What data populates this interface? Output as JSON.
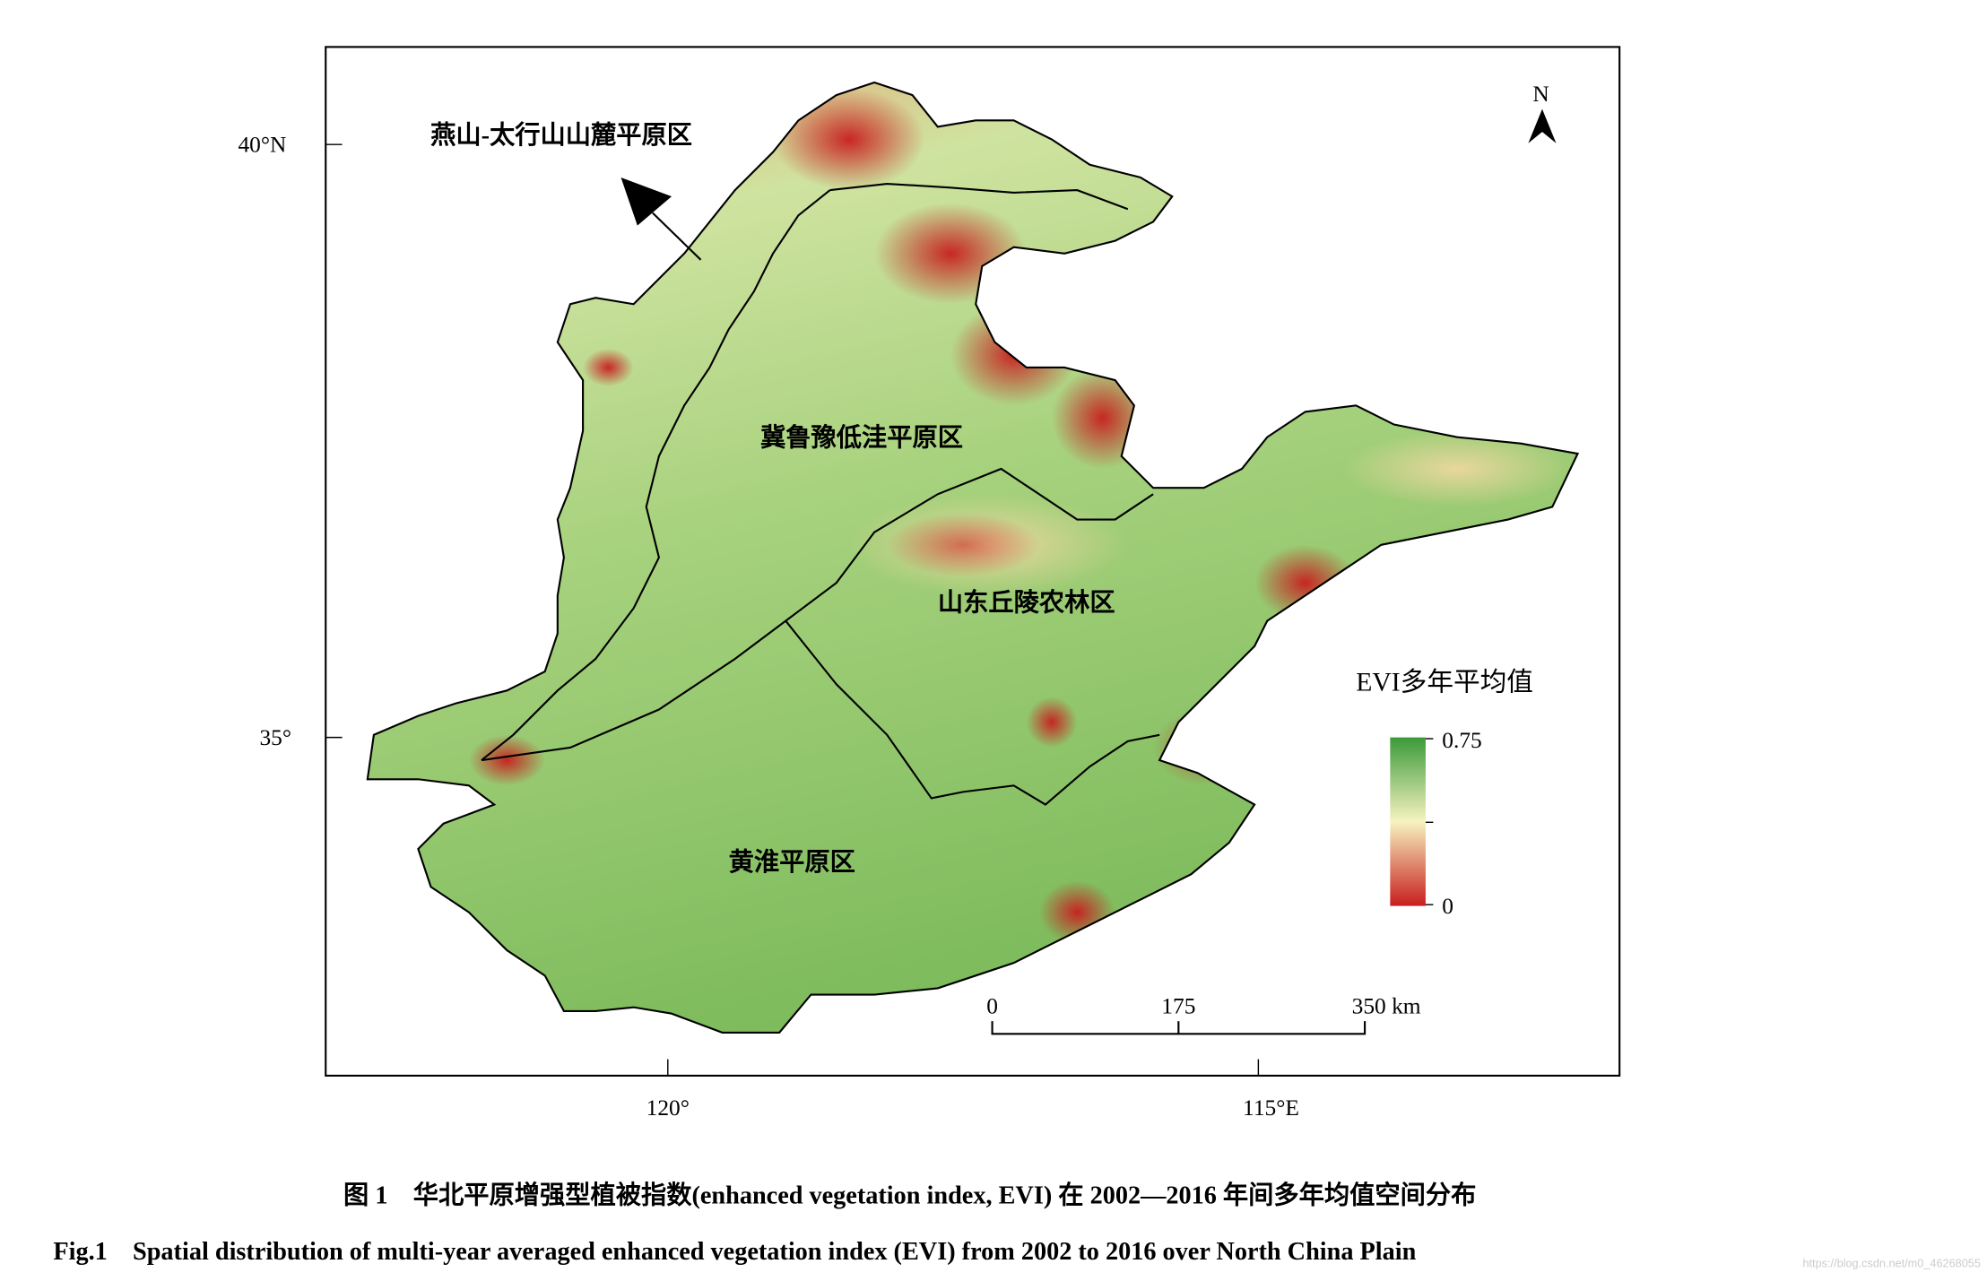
{
  "map": {
    "region_labels": [
      "燕山-太行山山麓平原区",
      "冀鲁豫低洼平原区",
      "山东丘陵农林区",
      "黄淮平原区"
    ],
    "lat_ticks": [
      "40°N",
      "35°"
    ],
    "lon_ticks": [
      "120°",
      "115°E"
    ],
    "north": "N",
    "legend": {
      "title": "EVI多年平均值",
      "max_label": "0.75",
      "min_label": "0"
    },
    "scale_bar": [
      "0",
      "175",
      "350 km"
    ]
  },
  "caption": {
    "cn": "图 1　华北平原增强型植被指数(enhanced vegetation index, EVI) 在 2002—2016 年间多年均值空间分布",
    "en": "Fig.1　Spatial distribution of multi-year averaged enhanced vegetation index (EVI) from 2002 to 2016 over North China Plain"
  },
  "watermark": "https://blog.csdn.net/m0_46268055"
}
